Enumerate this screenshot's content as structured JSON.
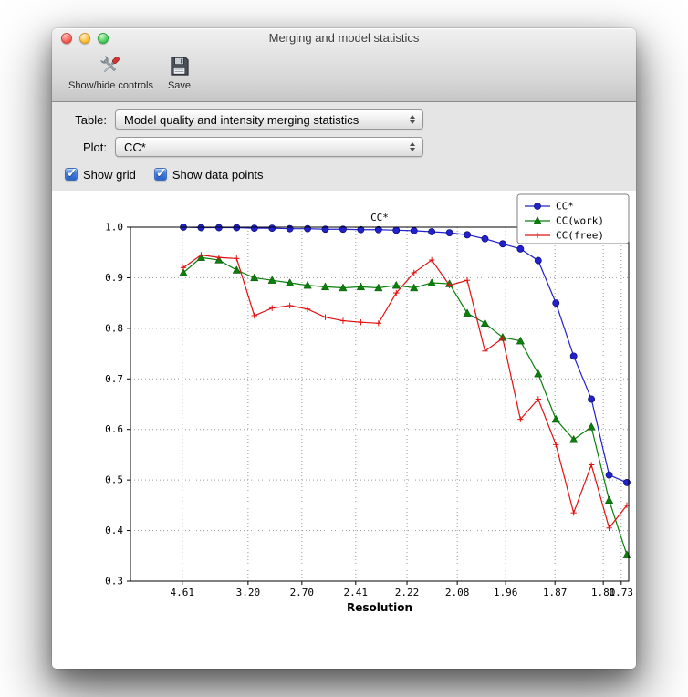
{
  "window": {
    "title": "Merging and model statistics"
  },
  "toolbar": {
    "items": [
      {
        "label": "Show/hide controls",
        "icon": "tools-icon"
      },
      {
        "label": "Save",
        "icon": "save-icon"
      }
    ]
  },
  "controls": {
    "table_label": "Table:",
    "table_value": "Model quality and intensity merging statistics",
    "plot_label": "Plot:",
    "plot_value": "CC*",
    "checkboxes": [
      {
        "label": "Show grid",
        "checked": true
      },
      {
        "label": "Show data points",
        "checked": true
      }
    ]
  },
  "chart_data": {
    "type": "line",
    "title": "CC*",
    "xlabel": "Resolution",
    "ylabel": "",
    "ylim": [
      0.3,
      1.0
    ],
    "yticks": [
      0.3,
      0.4,
      0.5,
      0.6,
      0.7,
      0.8,
      0.9,
      1.0
    ],
    "xticklabels": [
      "4.61",
      "3.20",
      "2.70",
      "2.41",
      "2.22",
      "2.08",
      "1.96",
      "1.87",
      "1.80",
      "1.73"
    ],
    "xtick_positions": [
      0.104,
      0.236,
      0.344,
      0.452,
      0.555,
      0.656,
      0.753,
      0.852,
      0.949,
      0.985
    ],
    "grid": true,
    "show_data_points": true,
    "legend_position": "upper right",
    "series": [
      {
        "name": "CC*",
        "color": "#2222cc",
        "marker": "circle",
        "values": [
          1.0,
          0.999,
          0.999,
          0.999,
          0.998,
          0.998,
          0.997,
          0.997,
          0.996,
          0.996,
          0.995,
          0.995,
          0.994,
          0.993,
          0.991,
          0.989,
          0.985,
          0.977,
          0.967,
          0.957,
          0.934,
          0.85,
          0.745,
          0.66,
          0.51,
          0.495
        ]
      },
      {
        "name": "CC(work)",
        "color": "#0a7f0a",
        "marker": "triangle",
        "values": [
          0.91,
          0.94,
          0.935,
          0.915,
          0.9,
          0.895,
          0.89,
          0.885,
          0.882,
          0.88,
          0.882,
          0.88,
          0.885,
          0.88,
          0.89,
          0.888,
          0.83,
          0.81,
          0.782,
          0.775,
          0.71,
          0.62,
          0.58,
          0.605,
          0.46,
          0.352
        ]
      },
      {
        "name": "CC(free)",
        "color": "#e01010",
        "marker": "plus",
        "values": [
          0.92,
          0.945,
          0.94,
          0.938,
          0.825,
          0.84,
          0.845,
          0.838,
          0.822,
          0.815,
          0.812,
          0.81,
          0.87,
          0.91,
          0.935,
          0.885,
          0.895,
          0.755,
          0.78,
          0.62,
          0.66,
          0.57,
          0.435,
          0.53,
          0.405,
          0.45
        ]
      }
    ]
  }
}
